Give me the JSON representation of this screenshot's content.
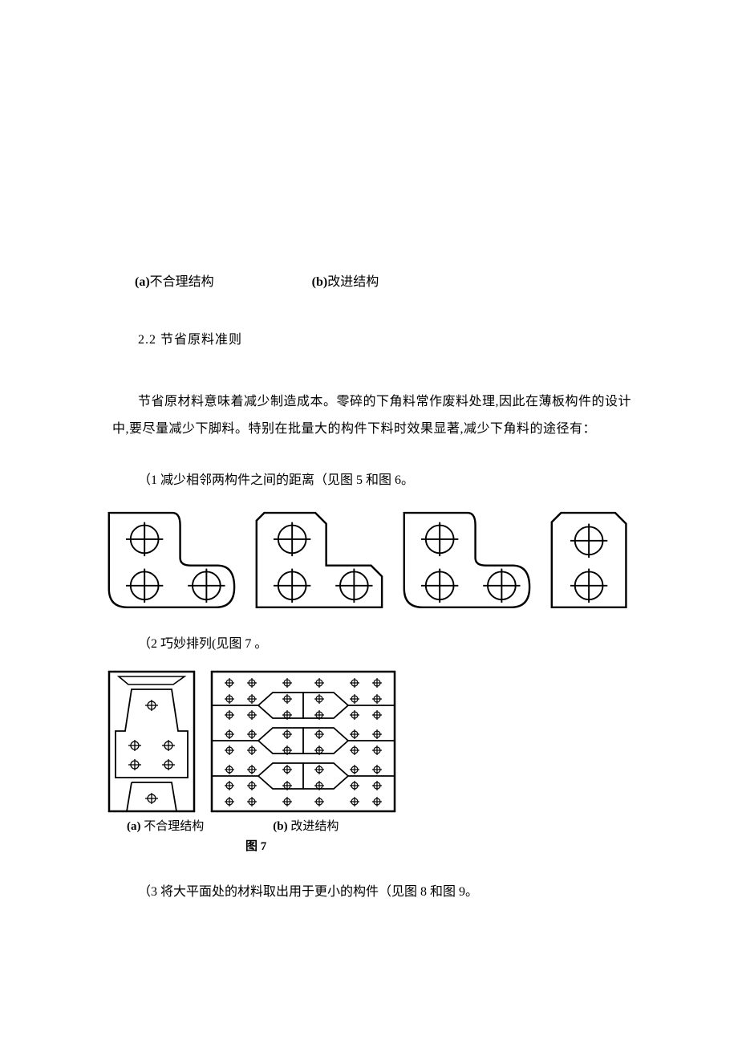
{
  "caption4": {
    "a": "(a)不合理结构",
    "b": "(b)改进结构"
  },
  "section": {
    "number": "2.2",
    "title": "节省原料准则"
  },
  "para1": "节省原材料意味着减少制造成本。零碎的下角料常作废料处理,因此在薄板构件的设计中,要尽量减少下脚料。特别在批量大的构件下料时效果显著,减少下角料的途径有：",
  "list": {
    "item1": "（1 减少相邻两构件之间的距离（见图 5 和图 6。",
    "item2": "（2 巧妙排列(见图 7 。",
    "item3": "（3 将大平面处的材料取出用于更小的构件（见图 8 和图 9。"
  },
  "fig7": {
    "cap_a": "(a) 不合理结构",
    "cap_b": "(b) 改进结构",
    "title": "图 7"
  },
  "style": {
    "stroke": "#000000",
    "strokeWidth": 2,
    "bg": "#ffffff"
  }
}
